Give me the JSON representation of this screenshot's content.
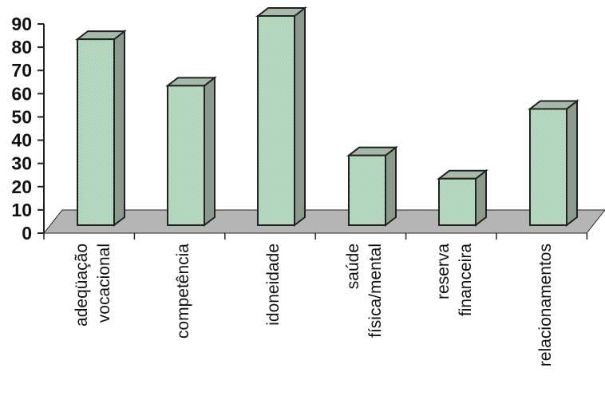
{
  "chart_data": {
    "type": "bar",
    "title": "",
    "xlabel": "",
    "ylabel": "",
    "ylim": [
      0,
      90
    ],
    "yticks": [
      0,
      10,
      20,
      30,
      40,
      50,
      60,
      70,
      80,
      90
    ],
    "grid": false,
    "legend": "none",
    "three_d": true,
    "categories": [
      [
        "adeqüação",
        "vocacional"
      ],
      [
        "competência"
      ],
      [
        "idoneidade"
      ],
      [
        "saúde",
        "física/mental"
      ],
      [
        "reserva",
        "financeira"
      ],
      [
        "relacionamentos"
      ]
    ],
    "values": [
      80,
      60,
      90,
      30,
      20,
      50
    ],
    "colors": {
      "bar_front": "#b8dcc2",
      "bar_side": "#8a9a8d",
      "bar_top": "#a7b9aa",
      "floor": "#b5b5b5",
      "outline": "#222222"
    }
  }
}
